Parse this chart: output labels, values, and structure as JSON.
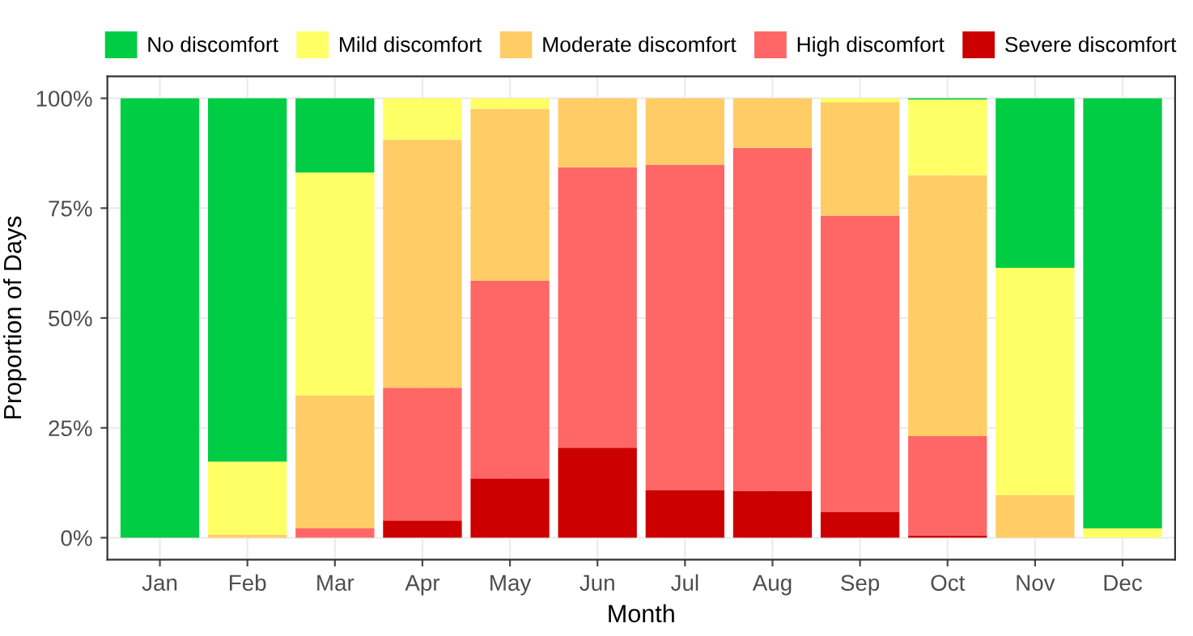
{
  "chart_data": {
    "type": "bar",
    "stacked": true,
    "xlabel": "Month",
    "ylabel": "Proportion of Days",
    "categories": [
      "Jan",
      "Feb",
      "Mar",
      "Apr",
      "May",
      "Jun",
      "Jul",
      "Aug",
      "Sep",
      "Oct",
      "Nov",
      "Dec"
    ],
    "series": [
      {
        "name": "Severe discomfort",
        "color": "#cc0000",
        "values": [
          0,
          0,
          0,
          3.9,
          13.5,
          20.5,
          10.8,
          10.7,
          5.8,
          0.5,
          0,
          0
        ]
      },
      {
        "name": "High discomfort",
        "color": "#ff6666",
        "values": [
          0,
          0,
          2.1,
          30.2,
          45.0,
          63.8,
          74.1,
          78.0,
          67.5,
          22.6,
          0,
          0
        ]
      },
      {
        "name": "Moderate discomfort",
        "color": "#ffcc66",
        "values": [
          0,
          0.7,
          30.3,
          56.5,
          39.1,
          15.7,
          15.1,
          11.3,
          25.8,
          59.4,
          9.7,
          0
        ]
      },
      {
        "name": "Mild discomfort",
        "color": "#ffff66",
        "values": [
          0,
          16.6,
          50.7,
          9.4,
          2.4,
          0,
          0,
          0,
          0.9,
          17.2,
          51.7,
          2.1
        ]
      },
      {
        "name": "No discomfort",
        "color": "#00cc44",
        "values": [
          100,
          82.7,
          16.9,
          0,
          0,
          0,
          0,
          0,
          0,
          0.3,
          38.6,
          97.9
        ]
      }
    ],
    "ylim": [
      -5,
      105
    ],
    "yticks": [
      {
        "value": 0,
        "label": "0%"
      },
      {
        "value": 25,
        "label": "25%"
      },
      {
        "value": 50,
        "label": "50%"
      },
      {
        "value": 75,
        "label": "75%"
      },
      {
        "value": 100,
        "label": "100%"
      }
    ],
    "grid": true,
    "legend": "top"
  }
}
